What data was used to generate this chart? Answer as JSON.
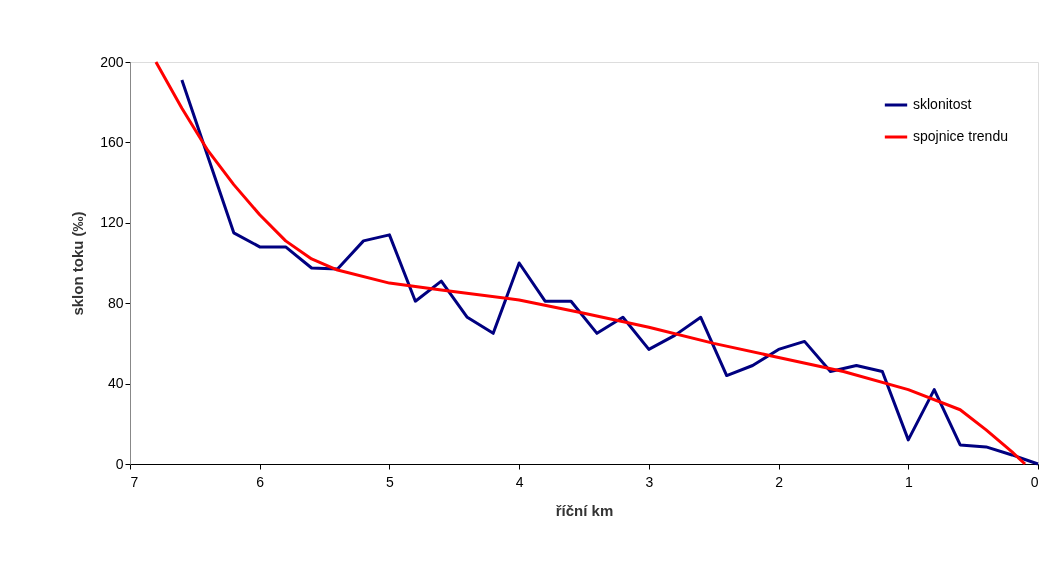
{
  "chart_data": {
    "type": "line",
    "xlabel": "říční km",
    "ylabel": "sklon toku (‰)",
    "xlim": [
      7,
      0
    ],
    "xticks": [
      7,
      6,
      5,
      4,
      3,
      2,
      1,
      0
    ],
    "ylim": [
      0,
      200
    ],
    "yticks": [
      0,
      40,
      80,
      120,
      160,
      200
    ],
    "grid": false,
    "legend": "top right",
    "marker": "none",
    "line_style": "solid",
    "series": [
      {
        "name": "sklonitost",
        "color": "#000080",
        "x": [
          6.6,
          6.4,
          6.2,
          6.0,
          5.8,
          5.6,
          5.4,
          5.2,
          5.0,
          4.8,
          4.6,
          4.4,
          4.2,
          4.0,
          3.8,
          3.6,
          3.4,
          3.2,
          3.0,
          2.8,
          2.6,
          2.4,
          2.2,
          2.0,
          1.8,
          1.6,
          1.4,
          1.2,
          1.0,
          0.8,
          0.6,
          0.4,
          0.2,
          0.0
        ],
        "values": [
          191,
          153,
          115,
          108,
          108,
          97.5,
          97,
          111,
          114,
          81,
          91,
          73,
          65,
          100,
          81,
          81,
          65,
          73,
          57,
          64,
          73,
          44,
          49,
          57,
          61,
          46,
          49,
          46,
          12,
          37,
          9.5,
          8.5,
          4.5,
          0
        ]
      },
      {
        "name": "spojnice trendu",
        "color": "#ff0000",
        "x": [
          6.8,
          6.6,
          6.4,
          6.2,
          6.0,
          5.8,
          5.6,
          5.4,
          5.0,
          4.6,
          4.0,
          3.5,
          3.0,
          2.5,
          2.0,
          1.5,
          1.0,
          0.6,
          0.4,
          0.2,
          0.1
        ],
        "values": [
          200,
          177,
          156,
          139,
          124,
          111,
          102,
          96.5,
          90,
          86.6,
          81.6,
          75,
          68,
          60,
          53,
          46,
          37,
          27,
          17,
          6,
          0
        ]
      }
    ]
  }
}
